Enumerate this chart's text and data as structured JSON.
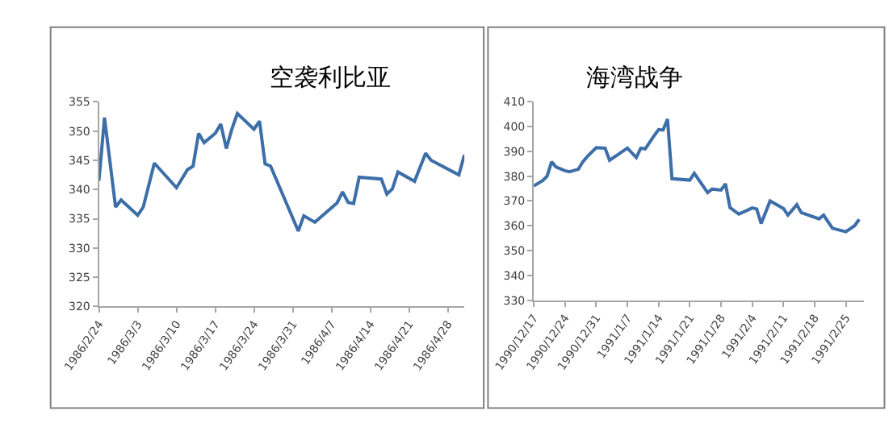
{
  "chart_data": [
    {
      "type": "line",
      "title": "空袭利比亚",
      "color": "#3c6ea8",
      "x": [
        "1986-02-24",
        "1986-02-25",
        "1986-02-27",
        "1986-02-28",
        "1986-03-03",
        "1986-03-04",
        "1986-03-06",
        "1986-03-10",
        "1986-03-12",
        "1986-03-13",
        "1986-03-14",
        "1986-03-15",
        "1986-03-17",
        "1986-03-18",
        "1986-03-19",
        "1986-03-20",
        "1986-03-21",
        "1986-03-24",
        "1986-03-25",
        "1986-03-26",
        "1986-03-27",
        "1986-04-01",
        "1986-04-02",
        "1986-04-04",
        "1986-04-08",
        "1986-04-09",
        "1986-04-10",
        "1986-04-11",
        "1986-04-12",
        "1986-04-16",
        "1986-04-17",
        "1986-04-18",
        "1986-04-19",
        "1986-04-22",
        "1986-04-24",
        "1986-04-25",
        "1986-04-30",
        "1986-05-01"
      ],
      "values": [
        341.5,
        352.3,
        337,
        338.2,
        335.6,
        337,
        344.5,
        340.3,
        343.4,
        344,
        349.6,
        348,
        349.6,
        351.2,
        347,
        350.3,
        353,
        350.3,
        351.7,
        344.4,
        344,
        332.9,
        335.5,
        334.4,
        337.7,
        339.6,
        337.8,
        337.6,
        342.1,
        341.8,
        339.2,
        340.1,
        343,
        341.4,
        346.2,
        345,
        342.5,
        345.9
      ],
      "xlim": [
        "1986-02-24",
        "1986-05-01"
      ],
      "xticks": [
        {
          "value": "1986-02-24",
          "label": "1986/2/24"
        },
        {
          "value": "1986-03-03",
          "label": "1986/3/3"
        },
        {
          "value": "1986-03-10",
          "label": "1986/3/10"
        },
        {
          "value": "1986-03-17",
          "label": "1986/3/17"
        },
        {
          "value": "1986-03-24",
          "label": "1986/3/24"
        },
        {
          "value": "1986-03-31",
          "label": "1986/3/31"
        },
        {
          "value": "1986-04-07",
          "label": "1986/4/7"
        },
        {
          "value": "1986-04-14",
          "label": "1986/4/14"
        },
        {
          "value": "1986-04-21",
          "label": "1986/4/21"
        },
        {
          "value": "1986-04-28",
          "label": "1986/4/28"
        }
      ],
      "ylim": [
        320,
        355
      ],
      "yticks": [
        320,
        325,
        330,
        335,
        340,
        345,
        350,
        355
      ]
    },
    {
      "type": "line",
      "title": "海湾战争",
      "color": "#3c6ea8",
      "x": [
        "1990-12-17",
        "1990-12-19",
        "1990-12-20",
        "1990-12-21",
        "1990-12-22",
        "1990-12-24",
        "1990-12-25",
        "1990-12-27",
        "1990-12-28",
        "1990-12-29",
        "1990-12-31",
        "1991-01-02",
        "1991-01-03",
        "1991-01-07",
        "1991-01-09",
        "1991-01-10",
        "1991-01-11",
        "1991-01-13",
        "1991-01-14",
        "1991-01-15",
        "1991-01-16",
        "1991-01-17",
        "1991-01-21",
        "1991-01-22",
        "1991-01-25",
        "1991-01-26",
        "1991-01-28",
        "1991-01-29",
        "1991-01-30",
        "1991-02-01",
        "1991-02-04",
        "1991-02-05",
        "1991-02-06",
        "1991-02-08",
        "1991-02-11",
        "1991-02-12",
        "1991-02-14",
        "1991-02-15",
        "1991-02-19",
        "1991-02-20",
        "1991-02-22",
        "1991-02-25",
        "1991-02-27",
        "1991-02-28"
      ],
      "values": [
        376.1,
        378.2,
        380,
        385.8,
        383.7,
        382.2,
        381.8,
        382.8,
        385.8,
        387.9,
        391.5,
        391.3,
        386.4,
        391.3,
        387.5,
        391.3,
        391,
        396.3,
        398.8,
        398.6,
        403,
        379,
        378.4,
        381.2,
        373.4,
        374.8,
        374.4,
        376.9,
        367.4,
        364.7,
        367.2,
        366.8,
        360.9,
        370,
        367,
        364.3,
        368.5,
        365.3,
        362.8,
        364.3,
        359,
        357.6,
        360.1,
        362.6
      ],
      "xlim": [
        "1990-12-17",
        "1991-03-01"
      ],
      "xticks": [
        {
          "value": "1990-12-17",
          "label": "1990/12/17"
        },
        {
          "value": "1990-12-24",
          "label": "1990/12/24"
        },
        {
          "value": "1990-12-31",
          "label": "1990/12/31"
        },
        {
          "value": "1991-01-07",
          "label": "1991/1/7"
        },
        {
          "value": "1991-01-14",
          "label": "1991/1/14"
        },
        {
          "value": "1991-01-21",
          "label": "1991/1/21"
        },
        {
          "value": "1991-01-28",
          "label": "1991/1/28"
        },
        {
          "value": "1991-02-04",
          "label": "1991/2/4"
        },
        {
          "value": "1991-02-11",
          "label": "1991/2/11"
        },
        {
          "value": "1991-02-18",
          "label": "1991/2/18"
        },
        {
          "value": "1991-02-25",
          "label": "1991/2/25"
        }
      ],
      "ylim": [
        330,
        410
      ],
      "yticks": [
        330,
        340,
        350,
        360,
        370,
        380,
        390,
        400,
        410
      ]
    }
  ]
}
